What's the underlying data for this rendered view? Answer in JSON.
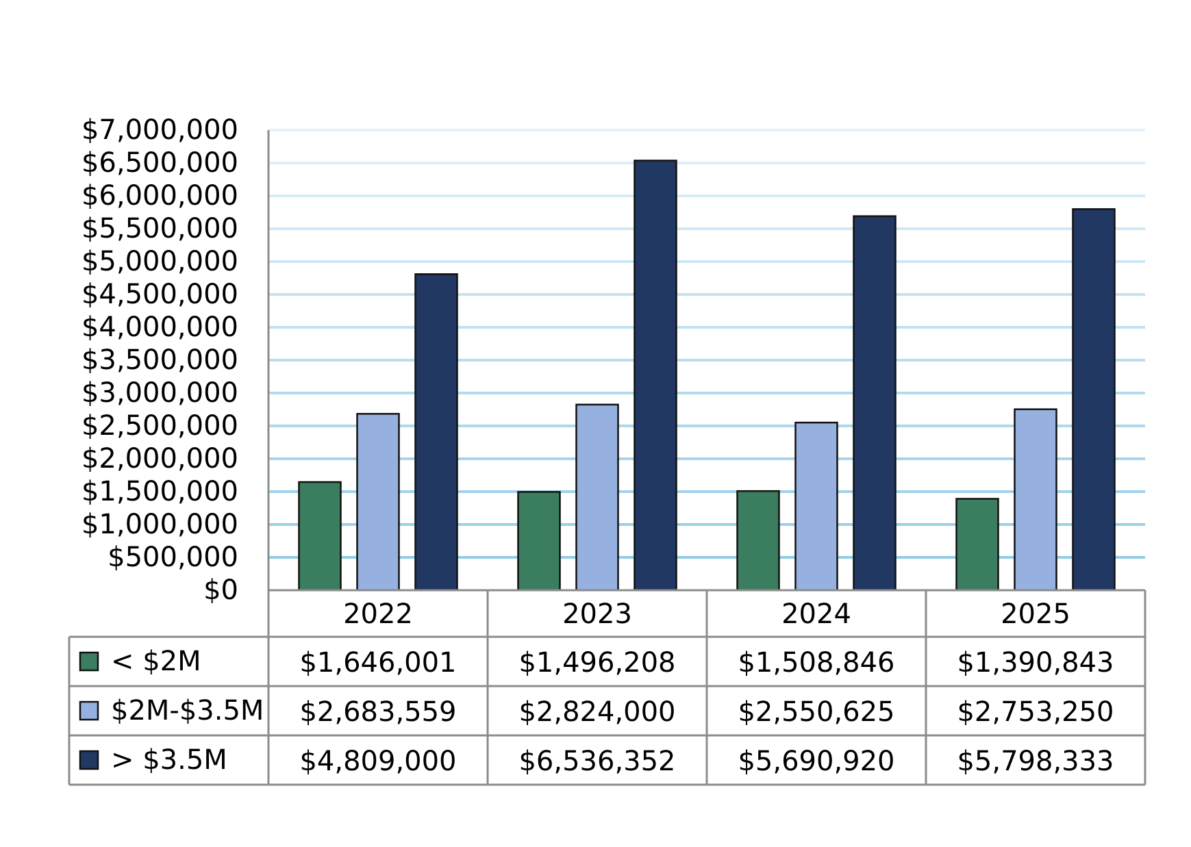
{
  "chart_data": {
    "type": "bar",
    "categories": [
      "2022",
      "2023",
      "2024",
      "2025"
    ],
    "series": [
      {
        "name": "< $2M",
        "color": "#3a7d5f",
        "values": [
          1646001,
          1496208,
          1508846,
          1390843
        ],
        "labels": [
          "$1,646,001",
          "$1,496,208",
          "$1,508,846",
          "$1,390,843"
        ]
      },
      {
        "name": "$2M-$3.5M",
        "color": "#96b0df",
        "values": [
          2683559,
          2824000,
          2550625,
          2753250
        ],
        "labels": [
          "$2,683,559",
          "$2,824,000",
          "$2,550,625",
          "$2,753,250"
        ]
      },
      {
        "name": "> $3.5M",
        "color": "#213862",
        "values": [
          4809000,
          6536352,
          5690920,
          5798333
        ],
        "labels": [
          "$4,809,000",
          "$6,536,352",
          "$5,690,920",
          "$5,798,333"
        ]
      }
    ],
    "ylim": [
      0,
      7000000
    ],
    "ytick_labels": [
      "$0",
      "$500,000",
      "$1,000,000",
      "$1,500,000",
      "$2,000,000",
      "$2,500,000",
      "$3,000,000",
      "$3,500,000",
      "$4,000,000",
      "$4,500,000",
      "$5,000,000",
      "$5,500,000",
      "$6,000,000",
      "$6,500,000",
      "$7,000,000"
    ],
    "title": "",
    "xlabel": "",
    "ylabel": "",
    "grid": true,
    "legend": "data table below chart",
    "colors": {
      "gridline": "#8ecae6",
      "table_border": "#8c8c8c",
      "axis": "#8c8c8c"
    }
  }
}
